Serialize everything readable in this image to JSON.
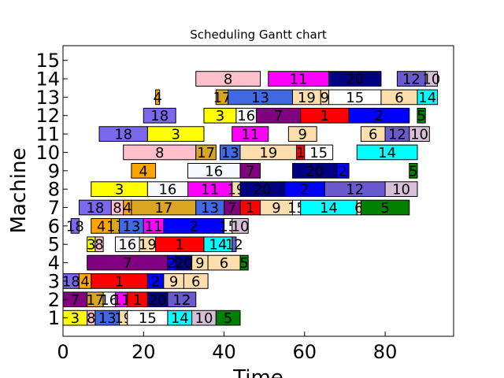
{
  "chart_data": {
    "type": "gantt",
    "title": "Scheduling Gantt chart",
    "xlabel": "Time",
    "ylabel": "Machine",
    "xlim": [
      0,
      97
    ],
    "ylim": [
      0,
      15.8
    ],
    "xticks": [
      0,
      20,
      40,
      60,
      80
    ],
    "yticks": [
      1,
      2,
      3,
      4,
      5,
      6,
      7,
      8,
      9,
      10,
      11,
      12,
      13,
      14,
      15
    ],
    "grid": false,
    "job_colors": {
      "1": "#ff0000",
      "2": "#0000ff",
      "3": "#ffff00",
      "4": "#ffa500",
      "5": "#008000",
      "6": "#ffdead",
      "7": "#800080",
      "8": "#ffc0cb",
      "9": "#ffdead",
      "10": "#d8bfd8",
      "11": "#ff00ff",
      "12": "#6a5acd",
      "13": "#4169e1",
      "14": "#00ffff",
      "15": "#ffffff",
      "16": "#f8f8ff",
      "17": "#daa520",
      "18": "#7b68ee",
      "19": "#ffdead",
      "20": "#000080"
    },
    "tasks": [
      {
        "machine": 1,
        "job": "3",
        "start": 0,
        "end": 6
      },
      {
        "machine": 1,
        "job": "8",
        "start": 6,
        "end": 8
      },
      {
        "machine": 1,
        "job": "13",
        "start": 8,
        "end": 14
      },
      {
        "machine": 1,
        "job": "19",
        "start": 14,
        "end": 16
      },
      {
        "machine": 1,
        "job": "15",
        "start": 16,
        "end": 26
      },
      {
        "machine": 1,
        "job": "14",
        "start": 26,
        "end": 32
      },
      {
        "machine": 1,
        "job": "10",
        "start": 32,
        "end": 38
      },
      {
        "machine": 1,
        "job": "5",
        "start": 38,
        "end": 44
      },
      {
        "machine": 2,
        "job": "7",
        "start": 0,
        "end": 6
      },
      {
        "machine": 2,
        "job": "17",
        "start": 6,
        "end": 10
      },
      {
        "machine": 2,
        "job": "16",
        "start": 10,
        "end": 13
      },
      {
        "machine": 2,
        "job": "11",
        "start": 13,
        "end": 16
      },
      {
        "machine": 2,
        "job": "1",
        "start": 16,
        "end": 21
      },
      {
        "machine": 2,
        "job": "20",
        "start": 21,
        "end": 26
      },
      {
        "machine": 2,
        "job": "12",
        "start": 26,
        "end": 33
      },
      {
        "machine": 3,
        "job": "18",
        "start": 0,
        "end": 4
      },
      {
        "machine": 3,
        "job": "4",
        "start": 4,
        "end": 7
      },
      {
        "machine": 3,
        "job": "1",
        "start": 7,
        "end": 21
      },
      {
        "machine": 3,
        "job": "2",
        "start": 21,
        "end": 25
      },
      {
        "machine": 3,
        "job": "9",
        "start": 25,
        "end": 30
      },
      {
        "machine": 3,
        "job": "6",
        "start": 30,
        "end": 36
      },
      {
        "machine": 4,
        "job": "7",
        "start": 6,
        "end": 26
      },
      {
        "machine": 4,
        "job": "2",
        "start": 26,
        "end": 28
      },
      {
        "machine": 4,
        "job": "20",
        "start": 28,
        "end": 32
      },
      {
        "machine": 4,
        "job": "9",
        "start": 32,
        "end": 36
      },
      {
        "machine": 4,
        "job": "6",
        "start": 36,
        "end": 44
      },
      {
        "machine": 4,
        "job": "5",
        "start": 44,
        "end": 46
      },
      {
        "machine": 5,
        "job": "3",
        "start": 6,
        "end": 8
      },
      {
        "machine": 5,
        "job": "8",
        "start": 8,
        "end": 10
      },
      {
        "machine": 5,
        "job": "16",
        "start": 13,
        "end": 19
      },
      {
        "machine": 5,
        "job": "19",
        "start": 19,
        "end": 23
      },
      {
        "machine": 5,
        "job": "1",
        "start": 23,
        "end": 35
      },
      {
        "machine": 5,
        "job": "14",
        "start": 35,
        "end": 42
      },
      {
        "machine": 5,
        "job": "12",
        "start": 42,
        "end": 43
      },
      {
        "machine": 6,
        "job": "18",
        "start": 2,
        "end": 4
      },
      {
        "machine": 6,
        "job": "4",
        "start": 7,
        "end": 12
      },
      {
        "machine": 6,
        "job": "17",
        "start": 12,
        "end": 14
      },
      {
        "machine": 6,
        "job": "13",
        "start": 14,
        "end": 20
      },
      {
        "machine": 6,
        "job": "11",
        "start": 20,
        "end": 25
      },
      {
        "machine": 6,
        "job": "2",
        "start": 25,
        "end": 40
      },
      {
        "machine": 6,
        "job": "15",
        "start": 40,
        "end": 42
      },
      {
        "machine": 6,
        "job": "10",
        "start": 42,
        "end": 46
      },
      {
        "machine": 7,
        "job": "18",
        "start": 4,
        "end": 12
      },
      {
        "machine": 7,
        "job": "8",
        "start": 12,
        "end": 15
      },
      {
        "machine": 7,
        "job": "4",
        "start": 15,
        "end": 17
      },
      {
        "machine": 7,
        "job": "17",
        "start": 17,
        "end": 33
      },
      {
        "machine": 7,
        "job": "13",
        "start": 33,
        "end": 40
      },
      {
        "machine": 7,
        "job": "7",
        "start": 40,
        "end": 44
      },
      {
        "machine": 7,
        "job": "1",
        "start": 44,
        "end": 49
      },
      {
        "machine": 7,
        "job": "9",
        "start": 49,
        "end": 57
      },
      {
        "machine": 7,
        "job": "15",
        "start": 57,
        "end": 59
      },
      {
        "machine": 7,
        "job": "14",
        "start": 59,
        "end": 73
      },
      {
        "machine": 7,
        "job": "6",
        "start": 73,
        "end": 74
      },
      {
        "machine": 7,
        "job": "5",
        "start": 74,
        "end": 86
      },
      {
        "machine": 8,
        "job": "3",
        "start": 7,
        "end": 21
      },
      {
        "machine": 8,
        "job": "16",
        "start": 21,
        "end": 31
      },
      {
        "machine": 8,
        "job": "11",
        "start": 31,
        "end": 42
      },
      {
        "machine": 8,
        "job": "19",
        "start": 42,
        "end": 44
      },
      {
        "machine": 8,
        "job": "20",
        "start": 44,
        "end": 55
      },
      {
        "machine": 8,
        "job": "2",
        "start": 55,
        "end": 65
      },
      {
        "machine": 8,
        "job": "12",
        "start": 65,
        "end": 80
      },
      {
        "machine": 8,
        "job": "10",
        "start": 80,
        "end": 88
      },
      {
        "machine": 9,
        "job": "4",
        "start": 17,
        "end": 23
      },
      {
        "machine": 9,
        "job": "16",
        "start": 31,
        "end": 44
      },
      {
        "machine": 9,
        "job": "7",
        "start": 44,
        "end": 49
      },
      {
        "machine": 9,
        "job": "20",
        "start": 57,
        "end": 68
      },
      {
        "machine": 9,
        "job": "2",
        "start": 68,
        "end": 71
      },
      {
        "machine": 9,
        "job": "5",
        "start": 86,
        "end": 88
      },
      {
        "machine": 10,
        "job": "8",
        "start": 15,
        "end": 33
      },
      {
        "machine": 10,
        "job": "17",
        "start": 33,
        "end": 38
      },
      {
        "machine": 10,
        "job": "13",
        "start": 39,
        "end": 44
      },
      {
        "machine": 10,
        "job": "19",
        "start": 44,
        "end": 58
      },
      {
        "machine": 10,
        "job": "1",
        "start": 58,
        "end": 60
      },
      {
        "machine": 10,
        "job": "15",
        "start": 60,
        "end": 67
      },
      {
        "machine": 10,
        "job": "14",
        "start": 73,
        "end": 88
      },
      {
        "machine": 11,
        "job": "18",
        "start": 9,
        "end": 21
      },
      {
        "machine": 11,
        "job": "3",
        "start": 21,
        "end": 35
      },
      {
        "machine": 11,
        "job": "11",
        "start": 42,
        "end": 51
      },
      {
        "machine": 11,
        "job": "9",
        "start": 56,
        "end": 63
      },
      {
        "machine": 11,
        "job": "6",
        "start": 74,
        "end": 80
      },
      {
        "machine": 11,
        "job": "12",
        "start": 80,
        "end": 86
      },
      {
        "machine": 11,
        "job": "10",
        "start": 86,
        "end": 91
      },
      {
        "machine": 12,
        "job": "18",
        "start": 20,
        "end": 28
      },
      {
        "machine": 12,
        "job": "3",
        "start": 35,
        "end": 43
      },
      {
        "machine": 12,
        "job": "16",
        "start": 43,
        "end": 48
      },
      {
        "machine": 12,
        "job": "7",
        "start": 48,
        "end": 59
      },
      {
        "machine": 12,
        "job": "1",
        "start": 59,
        "end": 71
      },
      {
        "machine": 12,
        "job": "2",
        "start": 71,
        "end": 86
      },
      {
        "machine": 12,
        "job": "5",
        "start": 88,
        "end": 90
      },
      {
        "machine": 13,
        "job": "4",
        "start": 23,
        "end": 24
      },
      {
        "machine": 13,
        "job": "17",
        "start": 38,
        "end": 41
      },
      {
        "machine": 13,
        "job": "13",
        "start": 41,
        "end": 57
      },
      {
        "machine": 13,
        "job": "19",
        "start": 57,
        "end": 64
      },
      {
        "machine": 13,
        "job": "9",
        "start": 64,
        "end": 66
      },
      {
        "machine": 13,
        "job": "15",
        "start": 66,
        "end": 79
      },
      {
        "machine": 13,
        "job": "6",
        "start": 79,
        "end": 88
      },
      {
        "machine": 13,
        "job": "14",
        "start": 88,
        "end": 93
      },
      {
        "machine": 14,
        "job": "8",
        "start": 33,
        "end": 49
      },
      {
        "machine": 14,
        "job": "11",
        "start": 51,
        "end": 66
      },
      {
        "machine": 14,
        "job": "20",
        "start": 66,
        "end": 79
      },
      {
        "machine": 14,
        "job": "12",
        "start": 83,
        "end": 90
      },
      {
        "machine": 14,
        "job": "10",
        "start": 90,
        "end": 93
      }
    ]
  }
}
